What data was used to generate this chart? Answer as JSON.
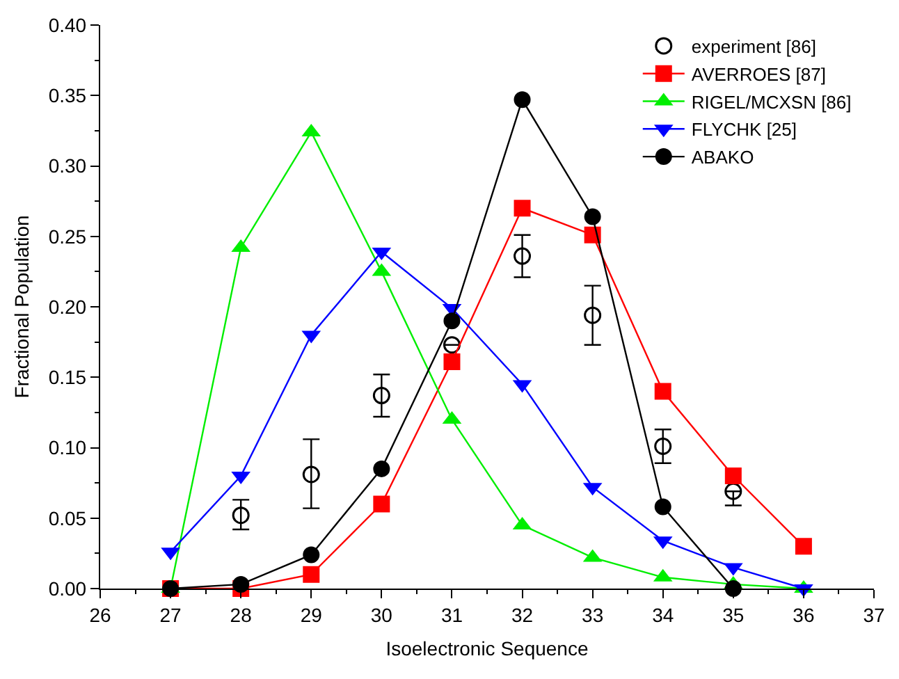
{
  "chart_data": {
    "type": "line",
    "xlabel": "Isoelectronic Sequence",
    "ylabel": "Fractional Population",
    "x": [
      27,
      28,
      29,
      30,
      31,
      32,
      33,
      34,
      35,
      36
    ],
    "xlim": [
      26,
      37
    ],
    "xticks": [
      26,
      27,
      28,
      29,
      30,
      31,
      32,
      33,
      34,
      35,
      36,
      37
    ],
    "ylim": [
      0,
      0.4
    ],
    "yticks": [
      {
        "value": 0,
        "label": "0.00"
      },
      {
        "value": 0.05,
        "label": "0.05"
      },
      {
        "value": 0.1,
        "label": "0.10"
      },
      {
        "value": 0.15,
        "label": "0.15"
      },
      {
        "value": 0.2,
        "label": "0.20"
      },
      {
        "value": 0.25,
        "label": "0.25"
      },
      {
        "value": 0.3,
        "label": "0.30"
      },
      {
        "value": 0.35,
        "label": "0.35"
      },
      {
        "value": 0.4,
        "label": "0.40"
      }
    ],
    "grid": false,
    "legend": "top right",
    "series": [
      {
        "name": "experiment [86]",
        "type": "scatter",
        "marker": "circle",
        "color": "#000000",
        "x": [
          28,
          29,
          30,
          31,
          32,
          33,
          34,
          35
        ],
        "values": [
          0.052,
          0.081,
          0.137,
          0.173,
          0.236,
          0.194,
          0.101,
          0.069
        ],
        "errors": [
          [
            0.042,
            0.063
          ],
          [
            0.057,
            0.106
          ],
          [
            0.122,
            0.152
          ],
          null,
          [
            0.221,
            0.251
          ],
          [
            0.173,
            0.215
          ],
          [
            0.089,
            0.113
          ],
          [
            0.059,
            0.069
          ]
        ]
      },
      {
        "name": "AVERROES [87]",
        "marker": "square",
        "color": "#ff0000",
        "values": [
          0,
          0,
          0.01,
          0.06,
          0.161,
          0.27,
          0.251,
          0.14,
          0.08,
          0.03
        ]
      },
      {
        "name": "RIGEL/MCXSN [86]",
        "marker": "triangle",
        "color": "#00ee00",
        "values": [
          0,
          0.242,
          0.324,
          0.225,
          0.12,
          0.045,
          0.022,
          0.008,
          0.003,
          0
        ]
      },
      {
        "name": "FLYCHK [25]",
        "marker": "triangle-down",
        "color": "#0000ff",
        "values": [
          0.026,
          0.08,
          0.18,
          0.239,
          0.199,
          0.145,
          0.072,
          0.034,
          0.015,
          0
        ]
      },
      {
        "name": "ABAKO",
        "marker": "circle",
        "color": "#000000",
        "values": [
          0,
          0.003,
          0.024,
          0.085,
          0.19,
          0.347,
          0.264,
          0.058,
          0,
          null
        ]
      }
    ]
  }
}
